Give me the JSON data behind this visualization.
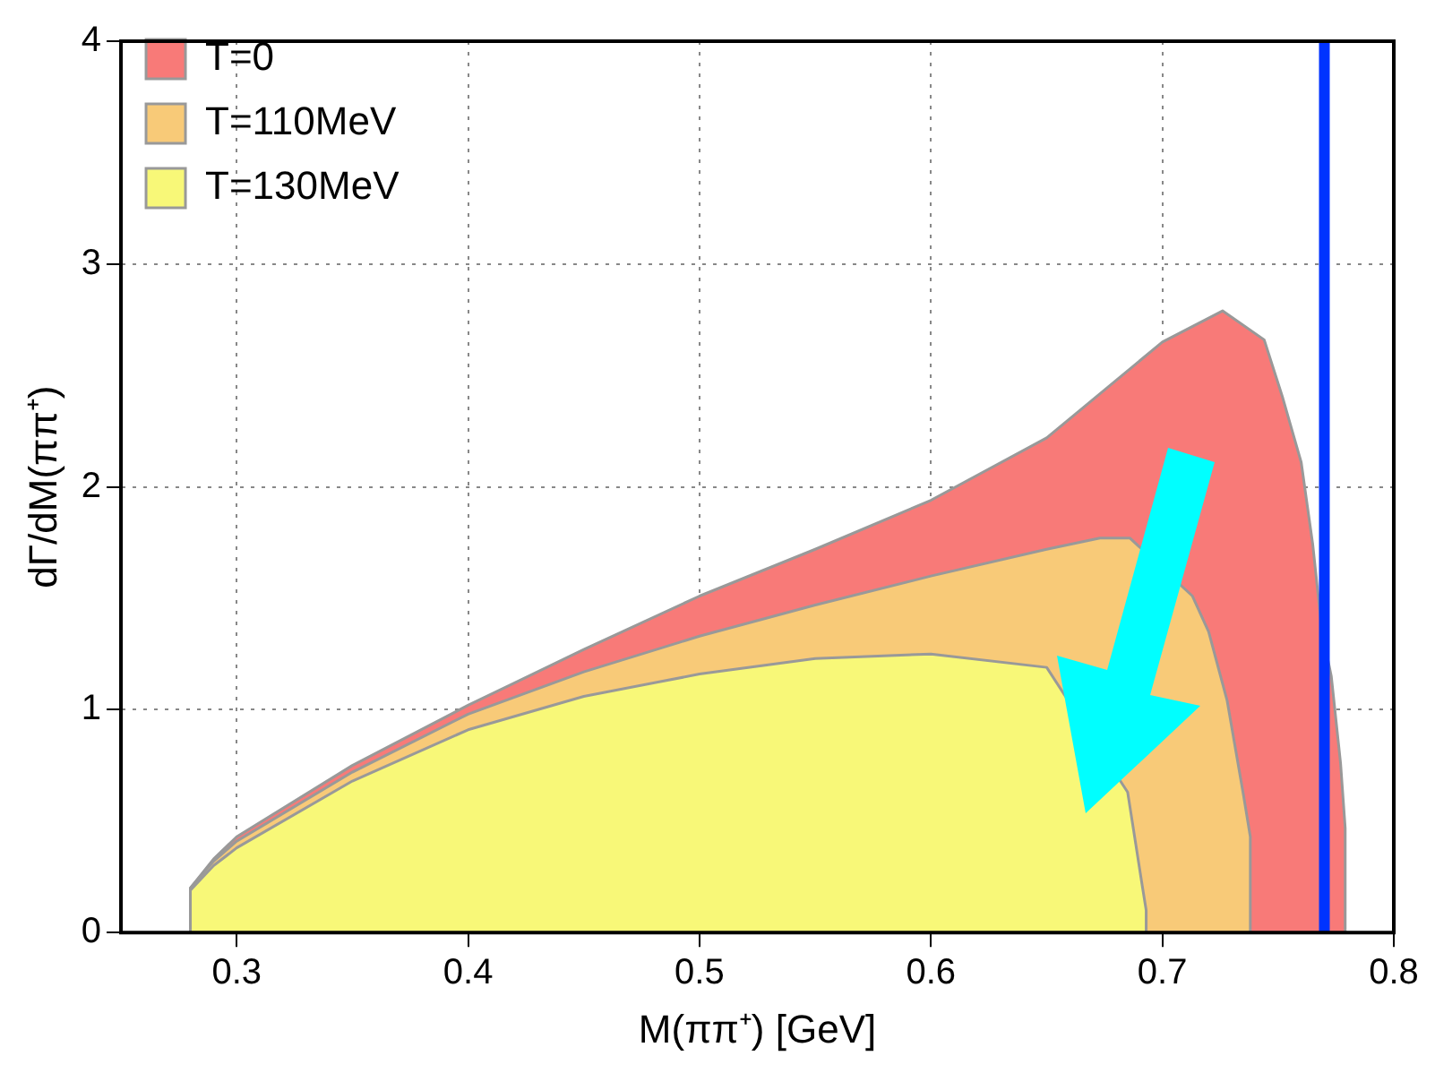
{
  "chart_data": {
    "type": "area",
    "xlabel": "M(ππ⁺) [GeV]",
    "ylabel": "dΓ/dM(ππ⁺)",
    "xlim": [
      0.25,
      0.8
    ],
    "ylim": [
      0,
      4
    ],
    "xticks": [
      0.3,
      0.4,
      0.5,
      0.6,
      0.7,
      0.8
    ],
    "yticks": [
      0,
      1,
      2,
      3,
      4
    ],
    "grid": true,
    "legend": "top left",
    "series": [
      {
        "name": "T=0",
        "color": "#f87a78",
        "x": [
          0.28,
          0.28,
          0.29,
          0.3,
          0.35,
          0.4,
          0.45,
          0.5,
          0.55,
          0.6,
          0.65,
          0.7,
          0.726,
          0.744,
          0.752,
          0.76,
          0.765,
          0.769,
          0.773,
          0.777,
          0.779,
          0.779
        ],
        "values": [
          0,
          0.2,
          0.33,
          0.43,
          0.75,
          1.02,
          1.27,
          1.51,
          1.72,
          1.94,
          2.22,
          2.65,
          2.79,
          2.66,
          2.4,
          2.11,
          1.74,
          1.35,
          1.15,
          0.76,
          0.47,
          0
        ]
      },
      {
        "name": "T=110MeV",
        "color": "#f8ca78",
        "x": [
          0.28,
          0.28,
          0.29,
          0.3,
          0.35,
          0.4,
          0.45,
          0.5,
          0.55,
          0.6,
          0.65,
          0.673,
          0.686,
          0.713,
          0.72,
          0.728,
          0.735,
          0.738,
          0.738
        ],
        "values": [
          0,
          0.2,
          0.32,
          0.41,
          0.72,
          0.98,
          1.17,
          1.33,
          1.47,
          1.6,
          1.72,
          1.77,
          1.77,
          1.51,
          1.35,
          1.04,
          0.62,
          0.43,
          0
        ]
      },
      {
        "name": "T=130MeV",
        "color": "#f8f878",
        "x": [
          0.28,
          0.28,
          0.29,
          0.3,
          0.35,
          0.4,
          0.45,
          0.5,
          0.55,
          0.6,
          0.65,
          0.685,
          0.691,
          0.693,
          0.693
        ],
        "values": [
          0,
          0.19,
          0.3,
          0.38,
          0.68,
          0.91,
          1.06,
          1.16,
          1.23,
          1.25,
          1.19,
          0.63,
          0.23,
          0.1,
          0
        ]
      }
    ],
    "ref_lines": [
      {
        "axis": "x",
        "value": 0.77,
        "color": "#0033ff"
      }
    ]
  }
}
